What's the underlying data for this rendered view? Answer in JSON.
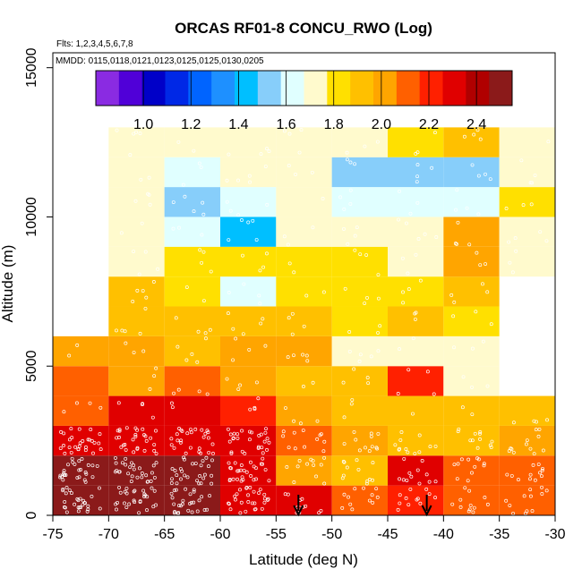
{
  "chart_data": {
    "type": "heatmap",
    "title": "ORCAS RF01-8 CONCU_RWO (Log)",
    "subtitle_flights": "Flts: 1,2,3,4,5,6,7,8",
    "subtitle_dates": "MMDD: 0115,0118,0121,0123,0125,0125,0130,0205",
    "xlabel": "Latitude (deg N)",
    "ylabel": "Altitude (m)",
    "xlim": [
      -75,
      -30
    ],
    "ylim": [
      0,
      15500
    ],
    "x_ticks": [
      -75,
      -70,
      -65,
      -60,
      -55,
      -50,
      -45,
      -40,
      -35,
      -30
    ],
    "x_tick_labels": [
      "-75",
      "-70",
      "-65",
      "-60",
      "-55",
      "-50",
      "-45",
      "-40",
      "-35",
      "-30"
    ],
    "y_ticks": [
      0,
      5000,
      10000,
      15000
    ],
    "y_tick_labels": [
      "0",
      "5000",
      "10000",
      "15000"
    ],
    "colorbar": {
      "range": [
        0.8,
        2.55
      ],
      "ticks": [
        1.0,
        1.2,
        1.4,
        1.6,
        1.8,
        2.0,
        2.2,
        2.4
      ],
      "tick_labels": [
        "1.0",
        "1.2",
        "1.4",
        "1.6",
        "1.8",
        "2.0",
        "2.2",
        "2.4"
      ],
      "colors": [
        "#8A2BE2",
        "#5000D8",
        "#0000C8",
        "#0028E6",
        "#0064FF",
        "#1E90FF",
        "#00BFFF",
        "#87CEFA",
        "#E0FFFF",
        "#FFFACD",
        "#FFE000",
        "#FFC000",
        "#FFA500",
        "#FF6000",
        "#FF2000",
        "#E00000",
        "#B00000",
        "#8B1A1A"
      ]
    },
    "bin_width_deg": 5,
    "bin_height_m": 1000,
    "cells": [
      {
        "lat": -75,
        "alt": 0,
        "v": 2.5
      },
      {
        "lat": -70,
        "alt": 0,
        "v": 2.5
      },
      {
        "lat": -65,
        "alt": 0,
        "v": 2.5
      },
      {
        "lat": -60,
        "alt": 0,
        "v": 2.35
      },
      {
        "lat": -55,
        "alt": 0,
        "v": 2.35
      },
      {
        "lat": -50,
        "alt": 0,
        "v": 2.15
      },
      {
        "lat": -45,
        "alt": 0,
        "v": 2.25
      },
      {
        "lat": -40,
        "alt": 0,
        "v": 2.15
      },
      {
        "lat": -35,
        "alt": 0,
        "v": 2.1
      },
      {
        "lat": -75,
        "alt": 1000,
        "v": 2.5
      },
      {
        "lat": -70,
        "alt": 1000,
        "v": 2.5
      },
      {
        "lat": -65,
        "alt": 1000,
        "v": 2.5
      },
      {
        "lat": -60,
        "alt": 1000,
        "v": 2.35
      },
      {
        "lat": -55,
        "alt": 1000,
        "v": 2.05
      },
      {
        "lat": -50,
        "alt": 1000,
        "v": 1.9
      },
      {
        "lat": -45,
        "alt": 1000,
        "v": 2.3
      },
      {
        "lat": -40,
        "alt": 1000,
        "v": 2.15
      },
      {
        "lat": -35,
        "alt": 1000,
        "v": 2.15
      },
      {
        "lat": -75,
        "alt": 2000,
        "v": 2.3
      },
      {
        "lat": -70,
        "alt": 2000,
        "v": 2.3
      },
      {
        "lat": -65,
        "alt": 2000,
        "v": 2.3
      },
      {
        "lat": -60,
        "alt": 2000,
        "v": 2.3
      },
      {
        "lat": -55,
        "alt": 2000,
        "v": 2.15
      },
      {
        "lat": -50,
        "alt": 2000,
        "v": 2.05
      },
      {
        "lat": -45,
        "alt": 2000,
        "v": 1.9
      },
      {
        "lat": -40,
        "alt": 2000,
        "v": 1.9
      },
      {
        "lat": -35,
        "alt": 2000,
        "v": 2.05
      },
      {
        "lat": -75,
        "alt": 3000,
        "v": 2.15
      },
      {
        "lat": -70,
        "alt": 3000,
        "v": 2.3
      },
      {
        "lat": -65,
        "alt": 3000,
        "v": 2.3
      },
      {
        "lat": -60,
        "alt": 3000,
        "v": 2.25
      },
      {
        "lat": -55,
        "alt": 3000,
        "v": 2.05
      },
      {
        "lat": -50,
        "alt": 3000,
        "v": 1.95
      },
      {
        "lat": -45,
        "alt": 3000,
        "v": 1.95
      },
      {
        "lat": -40,
        "alt": 3000,
        "v": 1.9
      },
      {
        "lat": -35,
        "alt": 3000,
        "v": 1.9
      },
      {
        "lat": -75,
        "alt": 4000,
        "v": 2.15
      },
      {
        "lat": -70,
        "alt": 4000,
        "v": 2.05
      },
      {
        "lat": -65,
        "alt": 4000,
        "v": 2.15
      },
      {
        "lat": -60,
        "alt": 4000,
        "v": 2.05
      },
      {
        "lat": -55,
        "alt": 4000,
        "v": 1.9
      },
      {
        "lat": -50,
        "alt": 4000,
        "v": 1.9
      },
      {
        "lat": -45,
        "alt": 4000,
        "v": 2.2
      },
      {
        "lat": -40,
        "alt": 4000,
        "v": 1.75
      },
      {
        "lat": -75,
        "alt": 5000,
        "v": 2.05
      },
      {
        "lat": -70,
        "alt": 5000,
        "v": 2.05
      },
      {
        "lat": -65,
        "alt": 5000,
        "v": 1.95
      },
      {
        "lat": -60,
        "alt": 5000,
        "v": 2.05
      },
      {
        "lat": -55,
        "alt": 5000,
        "v": 2.05
      },
      {
        "lat": -50,
        "alt": 5000,
        "v": 1.75
      },
      {
        "lat": -45,
        "alt": 5000,
        "v": 1.75
      },
      {
        "lat": -40,
        "alt": 5000,
        "v": 1.75
      },
      {
        "lat": -70,
        "alt": 6000,
        "v": 1.95
      },
      {
        "lat": -65,
        "alt": 6000,
        "v": 1.9
      },
      {
        "lat": -60,
        "alt": 6000,
        "v": 1.9
      },
      {
        "lat": -55,
        "alt": 6000,
        "v": 1.9
      },
      {
        "lat": -50,
        "alt": 6000,
        "v": 1.8
      },
      {
        "lat": -45,
        "alt": 6000,
        "v": 1.9
      },
      {
        "lat": -40,
        "alt": 6000,
        "v": 1.8
      },
      {
        "lat": -70,
        "alt": 7000,
        "v": 1.9
      },
      {
        "lat": -65,
        "alt": 7000,
        "v": 1.85
      },
      {
        "lat": -60,
        "alt": 7000,
        "v": 1.65
      },
      {
        "lat": -55,
        "alt": 7000,
        "v": 1.85
      },
      {
        "lat": -50,
        "alt": 7000,
        "v": 1.8
      },
      {
        "lat": -45,
        "alt": 7000,
        "v": 1.8
      },
      {
        "lat": -40,
        "alt": 7000,
        "v": 1.95
      },
      {
        "lat": -70,
        "alt": 8000,
        "v": 1.75
      },
      {
        "lat": -65,
        "alt": 8000,
        "v": 1.85
      },
      {
        "lat": -60,
        "alt": 8000,
        "v": 1.85
      },
      {
        "lat": -55,
        "alt": 8000,
        "v": 1.85
      },
      {
        "lat": -50,
        "alt": 8000,
        "v": 1.8
      },
      {
        "lat": -45,
        "alt": 8000,
        "v": 1.75
      },
      {
        "lat": -40,
        "alt": 8000,
        "v": 2.0
      },
      {
        "lat": -35,
        "alt": 8000,
        "v": 1.75
      },
      {
        "lat": -70,
        "alt": 9000,
        "v": 1.7
      },
      {
        "lat": -65,
        "alt": 9000,
        "v": 1.65
      },
      {
        "lat": -60,
        "alt": 9000,
        "v": 1.45
      },
      {
        "lat": -55,
        "alt": 9000,
        "v": 1.75
      },
      {
        "lat": -50,
        "alt": 9000,
        "v": 1.75
      },
      {
        "lat": -45,
        "alt": 9000,
        "v": 1.75
      },
      {
        "lat": -40,
        "alt": 9000,
        "v": 2.0
      },
      {
        "lat": -35,
        "alt": 9000,
        "v": 1.75
      },
      {
        "lat": -70,
        "alt": 10000,
        "v": 1.7
      },
      {
        "lat": -65,
        "alt": 10000,
        "v": 1.5
      },
      {
        "lat": -60,
        "alt": 10000,
        "v": 1.65
      },
      {
        "lat": -55,
        "alt": 10000,
        "v": 1.7
      },
      {
        "lat": -50,
        "alt": 10000,
        "v": 1.65
      },
      {
        "lat": -45,
        "alt": 10000,
        "v": 1.65
      },
      {
        "lat": -40,
        "alt": 10000,
        "v": 1.65
      },
      {
        "lat": -35,
        "alt": 10000,
        "v": 1.85
      },
      {
        "lat": -70,
        "alt": 11000,
        "v": 1.75
      },
      {
        "lat": -65,
        "alt": 11000,
        "v": 1.65
      },
      {
        "lat": -60,
        "alt": 11000,
        "v": 1.75
      },
      {
        "lat": -55,
        "alt": 11000,
        "v": 1.7
      },
      {
        "lat": -50,
        "alt": 11000,
        "v": 1.5
      },
      {
        "lat": -45,
        "alt": 11000,
        "v": 1.5
      },
      {
        "lat": -40,
        "alt": 11000,
        "v": 1.55
      },
      {
        "lat": -35,
        "alt": 11000,
        "v": 1.75
      },
      {
        "lat": -70,
        "alt": 12000,
        "v": 1.7
      },
      {
        "lat": -65,
        "alt": 12000,
        "v": 1.7
      },
      {
        "lat": -60,
        "alt": 12000,
        "v": 1.75
      },
      {
        "lat": -55,
        "alt": 12000,
        "v": 1.7
      },
      {
        "lat": -50,
        "alt": 12000,
        "v": 1.75
      },
      {
        "lat": -45,
        "alt": 12000,
        "v": 1.85
      },
      {
        "lat": -40,
        "alt": 12000,
        "v": 1.95
      },
      {
        "lat": -35,
        "alt": 12000,
        "v": 1.75
      }
    ],
    "markers": [
      {
        "type": "arrow-down",
        "lat": -53,
        "alt": 0
      },
      {
        "type": "arrow-down",
        "lat": -41.5,
        "alt": 0
      }
    ]
  }
}
